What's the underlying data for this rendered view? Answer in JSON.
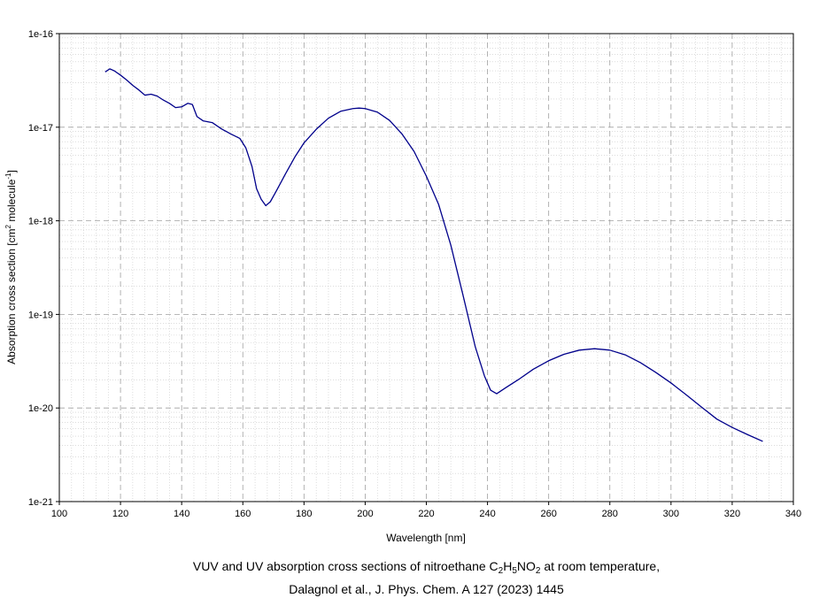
{
  "chart_data": {
    "type": "line",
    "xlabel": "Wavelength [nm]",
    "ylabel": {
      "main": "Absorption cross section [cm",
      "exp2": "2",
      "mid": " molecule",
      "expm1": "-1",
      "end": "]"
    },
    "xlim": [
      100,
      340
    ],
    "ylim": [
      1e-21,
      1e-16
    ],
    "yscale": "log",
    "grid": true,
    "x_ticks": [
      "100",
      "120",
      "140",
      "160",
      "180",
      "200",
      "220",
      "240",
      "260",
      "280",
      "300",
      "320",
      "340"
    ],
    "y_ticks": [
      "1e-16",
      "1e-17",
      "1e-18",
      "1e-19",
      "1e-20",
      "1e-21"
    ],
    "line_color": "#00008b",
    "series": [
      {
        "x": [
          115,
          116.5,
          118,
          120,
          122,
          124,
          126,
          128,
          130,
          132,
          134,
          136,
          138,
          140,
          142,
          143.5,
          145,
          147,
          150,
          153,
          156,
          159,
          161,
          163,
          164.5,
          166,
          167.5,
          169,
          171,
          174,
          177,
          180,
          184,
          188,
          192,
          196,
          198,
          200,
          204,
          208,
          212,
          216,
          220,
          224,
          228,
          232,
          236,
          239,
          241,
          243,
          246,
          250,
          255,
          260,
          265,
          270,
          275,
          280,
          285,
          290,
          295,
          300,
          305,
          310,
          315,
          320,
          325,
          330
        ],
        "y": [
          3.9e-17,
          4.2e-17,
          4e-17,
          3.6e-17,
          3.2e-17,
          2.8e-17,
          2.5e-17,
          2.2e-17,
          2.25e-17,
          2.15e-17,
          1.95e-17,
          1.8e-17,
          1.62e-17,
          1.65e-17,
          1.8e-17,
          1.75e-17,
          1.3e-17,
          1.17e-17,
          1.12e-17,
          9.6e-18,
          8.5e-18,
          7.6e-18,
          6e-18,
          3.8e-18,
          2.2e-18,
          1.7e-18,
          1.45e-18,
          1.6e-18,
          2.1e-18,
          3.2e-18,
          4.8e-18,
          6.8e-18,
          9.5e-18,
          1.25e-17,
          1.48e-17,
          1.58e-17,
          1.6e-17,
          1.58e-17,
          1.45e-17,
          1.18e-17,
          8.5e-18,
          5.5e-18,
          3e-18,
          1.5e-18,
          5.5e-19,
          1.6e-19,
          4.5e-20,
          2.2e-20,
          1.55e-20,
          1.42e-20,
          1.65e-20,
          2e-20,
          2.6e-20,
          3.2e-20,
          3.75e-20,
          4.15e-20,
          4.3e-20,
          4.15e-20,
          3.7e-20,
          3.05e-20,
          2.4e-20,
          1.85e-20,
          1.38e-20,
          1.02e-20,
          7.6e-21,
          6.2e-21,
          5.2e-21,
          4.4e-21
        ]
      }
    ]
  },
  "caption": {
    "line1_pre": "VUV and UV absorption cross sections of nitroethane C",
    "sub1": "2",
    "mid1": "H",
    "sub2": "5",
    "mid2": "NO",
    "sub3": "2",
    "line1_post": " at room temperature,",
    "line2": "Dalagnol et al., J. Phys. Chem. A 127 (2023) 1445"
  }
}
